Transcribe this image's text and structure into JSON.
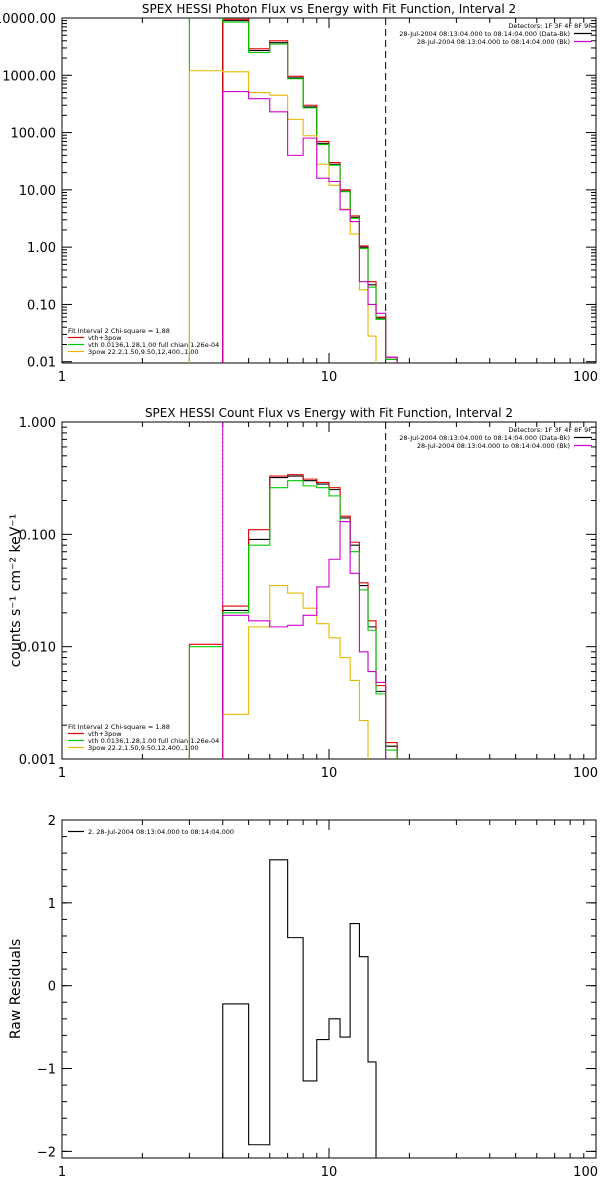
{
  "chart_data": [
    {
      "type": "line",
      "title": "SPEX HESSI Photon Flux vs Energy with Fit Function, Interval 2",
      "xlabel": "",
      "ylabel": "",
      "xscale": "log",
      "yscale": "log",
      "xlim": [
        1,
        100
      ],
      "ylim": [
        0.0095,
        10000
      ],
      "xticks": [
        {
          "v": 1,
          "label": "1"
        },
        {
          "v": 10,
          "label": "10"
        },
        {
          "v": 100,
          "label": "100"
        }
      ],
      "yticks": [
        {
          "v": 0.01,
          "label": "0.01"
        },
        {
          "v": 0.1,
          "label": "0.10"
        },
        {
          "v": 1,
          "label": "1.00"
        },
        {
          "v": 10,
          "label": "10.00"
        },
        {
          "v": 100,
          "label": "100.00"
        },
        {
          "v": 1000,
          "label": "1000.00"
        },
        {
          "v": 10000,
          "label": "10000.00"
        }
      ],
      "vlines": [
        {
          "x": 4.0,
          "style": "solid",
          "color": "#cc00cc"
        },
        {
          "x": 16.3,
          "style": "dashed",
          "color": "#000000"
        }
      ],
      "info": {
        "heading": "Detectors: 1F 3F 4F 8F 9F",
        "lines": [
          {
            "text": "28-Jul-2004 08:13:04.000 to 08:14:04.000 (Data-Bk)",
            "color": "#000000"
          },
          {
            "text": "28-Jul-2004 08:13:04.000 to 08:14:04.000 (Bk)",
            "color": "#cc00cc"
          }
        ]
      },
      "legend": {
        "heading": "Fit Interval 2   Chi-square = 1.88",
        "entries": [
          {
            "text": "vth+3pow",
            "color": "#e00000"
          },
          {
            "text": "vth 0.0136,1.28,1.00  full chian 1.26e-04",
            "color": "#00cc00"
          },
          {
            "text": "3pow 22.2,1.50,9.50,12,400.,1.00",
            "color": "#e6b800"
          }
        ]
      },
      "edges": [
        3.0,
        4.0,
        5.0,
        6.0,
        7.0,
        8.0,
        9.0,
        10.0,
        11.0,
        12.0,
        13.0,
        14.0,
        15.0,
        16.3,
        18.0,
        20.0
      ],
      "series": [
        {
          "color": "#000000",
          "values": [
            null,
            9000,
            2700,
            3700,
            900,
            280,
            65,
            28,
            9.5,
            3.3,
            1.0,
            0.22,
            0.058,
            0.011,
            null
          ]
        },
        {
          "color": "#e00000",
          "values": [
            null,
            9500,
            2900,
            4000,
            960,
            300,
            70,
            30,
            10,
            3.5,
            1.05,
            0.25,
            0.06,
            0.012,
            null
          ]
        },
        {
          "color": "#00cc00",
          "values": [
            20000,
            8500,
            2500,
            3500,
            870,
            270,
            62,
            27,
            9.3,
            3.2,
            0.95,
            0.2,
            0.055,
            0.011,
            null
          ]
        },
        {
          "color": "#e6b800",
          "values": [
            1200,
            1150,
            500,
            450,
            170,
            88,
            28,
            12,
            4.6,
            1.7,
            0.18,
            0.028,
            null,
            null,
            null
          ]
        },
        {
          "color": "#cc00cc",
          "values": [
            null,
            520,
            390,
            230,
            40,
            80,
            16,
            14,
            4.5,
            2.8,
            0.25,
            0.1,
            0.07,
            0.012,
            null
          ]
        }
      ]
    },
    {
      "type": "line",
      "title": "SPEX HESSI Count Flux vs Energy with Fit Function, Interval 2",
      "xlabel": "",
      "ylabel": "counts s⁻¹ cm⁻² keV⁻¹",
      "xscale": "log",
      "yscale": "log",
      "xlim": [
        1,
        100
      ],
      "ylim": [
        0.001,
        1.0
      ],
      "xticks": [
        {
          "v": 1,
          "label": "1"
        },
        {
          "v": 10,
          "label": "10"
        },
        {
          "v": 100,
          "label": "100"
        }
      ],
      "yticks": [
        {
          "v": 0.001,
          "label": "0.001"
        },
        {
          "v": 0.01,
          "label": "0.010"
        },
        {
          "v": 0.1,
          "label": "0.100"
        },
        {
          "v": 1,
          "label": "1.000"
        }
      ],
      "vlines": [
        {
          "x": 4.0,
          "style": "dotted",
          "color": "#000000"
        },
        {
          "x": 4.0,
          "style": "solid",
          "color": "#cc00cc"
        },
        {
          "x": 16.3,
          "style": "dashed",
          "color": "#000000"
        }
      ],
      "info": {
        "heading": "Detectors: 1F 3F 4F 8F 9F",
        "lines": [
          {
            "text": "28-Jul-2004 08:13:04.000 to 08:14:04.000 (Data-Bk)",
            "color": "#000000"
          },
          {
            "text": "28-Jul-2004 08:13:04.000 to 08:14:04.000 (Bk)",
            "color": "#cc00cc"
          }
        ]
      },
      "legend": {
        "heading": "Fit Interval 2   Chi-square = 1.88",
        "entries": [
          {
            "text": "vth+3pow",
            "color": "#e00000"
          },
          {
            "text": "vth 0.0136,1.28,1.00  full chian 1.26e-04",
            "color": "#00cc00"
          },
          {
            "text": "3pow 22.2,1.50,9.50,12,400.,1.00",
            "color": "#e6b800"
          }
        ]
      },
      "edges": [
        3.0,
        4.0,
        5.0,
        6.0,
        7.0,
        8.0,
        9.0,
        10.0,
        11.0,
        12.0,
        13.0,
        14.0,
        15.0,
        16.3,
        18.0,
        20.0
      ],
      "series": [
        {
          "color": "#000000",
          "values": [
            null,
            0.021,
            0.09,
            0.32,
            0.33,
            0.3,
            0.28,
            0.25,
            0.14,
            0.08,
            0.035,
            0.015,
            0.004,
            0.0013,
            null
          ]
        },
        {
          "color": "#e00000",
          "values": [
            0.0105,
            0.023,
            0.11,
            0.33,
            0.34,
            0.31,
            0.29,
            0.26,
            0.145,
            0.085,
            0.037,
            0.017,
            0.0045,
            0.0014,
            null
          ]
        },
        {
          "color": "#00cc00",
          "values": [
            0.01,
            0.02,
            0.08,
            0.26,
            0.3,
            0.27,
            0.26,
            0.22,
            0.13,
            0.07,
            0.032,
            0.014,
            0.0038,
            0.0012,
            null
          ]
        },
        {
          "color": "#e6b800",
          "values": [
            null,
            0.0025,
            0.015,
            0.035,
            0.03,
            0.022,
            0.016,
            0.012,
            0.008,
            0.005,
            0.0022,
            null,
            null,
            null,
            null
          ]
        },
        {
          "color": "#cc00cc",
          "values": [
            null,
            0.019,
            0.017,
            0.015,
            0.0155,
            0.019,
            0.034,
            0.06,
            0.13,
            0.045,
            0.009,
            0.006,
            0.0048,
            null,
            null
          ]
        }
      ]
    },
    {
      "type": "line",
      "title": "",
      "xlabel": "",
      "ylabel": "Raw Residuals",
      "xscale": "log",
      "yscale": "linear",
      "xlim": [
        1,
        100
      ],
      "ylim": [
        -2.08,
        2.0
      ],
      "xticks": [
        {
          "v": 1,
          "label": "1"
        },
        {
          "v": 10,
          "label": "10"
        },
        {
          "v": 100,
          "label": "100"
        }
      ],
      "yticks": [
        {
          "v": -2,
          "label": "−2"
        },
        {
          "v": -1,
          "label": "−1"
        },
        {
          "v": 0,
          "label": "0"
        },
        {
          "v": 1,
          "label": "1"
        },
        {
          "v": 2,
          "label": "2"
        }
      ],
      "vlines": [],
      "info": null,
      "legend": {
        "heading": "",
        "entries": [
          {
            "text": "2. 28-Jul-2004 08:13:04.000 to 08:14:04.000",
            "color": "#000000"
          }
        ]
      },
      "edges": [
        4.0,
        5.0,
        6.0,
        7.0,
        8.0,
        9.0,
        10.0,
        11.0,
        12.0,
        13.0,
        14.0,
        15.0,
        16.3
      ],
      "series": [
        {
          "color": "#000000",
          "values": [
            -0.22,
            -1.92,
            1.52,
            0.58,
            -1.15,
            -0.65,
            -0.4,
            -0.62,
            0.75,
            0.35,
            -0.92,
            -2.08
          ]
        }
      ]
    }
  ]
}
